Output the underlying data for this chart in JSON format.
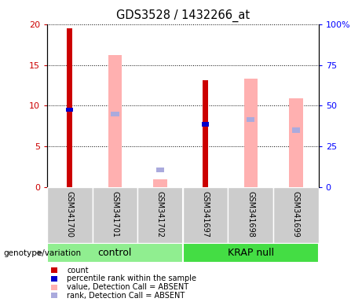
{
  "title": "GDS3528 / 1432266_at",
  "samples": [
    "GSM341700",
    "GSM341701",
    "GSM341702",
    "GSM341697",
    "GSM341698",
    "GSM341699"
  ],
  "red_bars": [
    19.5,
    0,
    0,
    13.1,
    0,
    0
  ],
  "blue_dots": [
    9.5,
    0,
    0,
    7.7,
    0,
    0
  ],
  "pink_bars": [
    0,
    16.2,
    1.0,
    0,
    13.3,
    10.9
  ],
  "lavender_dots": [
    0,
    9.0,
    2.1,
    0,
    8.3,
    7.0
  ],
  "ylim_left": [
    0,
    20
  ],
  "ylim_right": [
    0,
    100
  ],
  "yticks_left": [
    0,
    5,
    10,
    15,
    20
  ],
  "yticks_right": [
    0,
    25,
    50,
    75,
    100
  ],
  "ytick_labels_left": [
    "0",
    "5",
    "10",
    "15",
    "20"
  ],
  "ytick_labels_right": [
    "0",
    "25",
    "50",
    "75",
    "100%"
  ],
  "red_color": "#cc0000",
  "blue_color": "#0000cc",
  "pink_color": "#ffb0b0",
  "lavender_color": "#aaaadd",
  "legend_items": [
    {
      "color": "#cc0000",
      "label": "count"
    },
    {
      "color": "#0000cc",
      "label": "percentile rank within the sample"
    },
    {
      "color": "#ffb0b0",
      "label": "value, Detection Call = ABSENT"
    },
    {
      "color": "#aaaadd",
      "label": "rank, Detection Call = ABSENT"
    }
  ],
  "control_color": "#90ee90",
  "krap_color": "#44dd44",
  "tick_box_color": "#cccccc",
  "group_label": "genotype/variation"
}
